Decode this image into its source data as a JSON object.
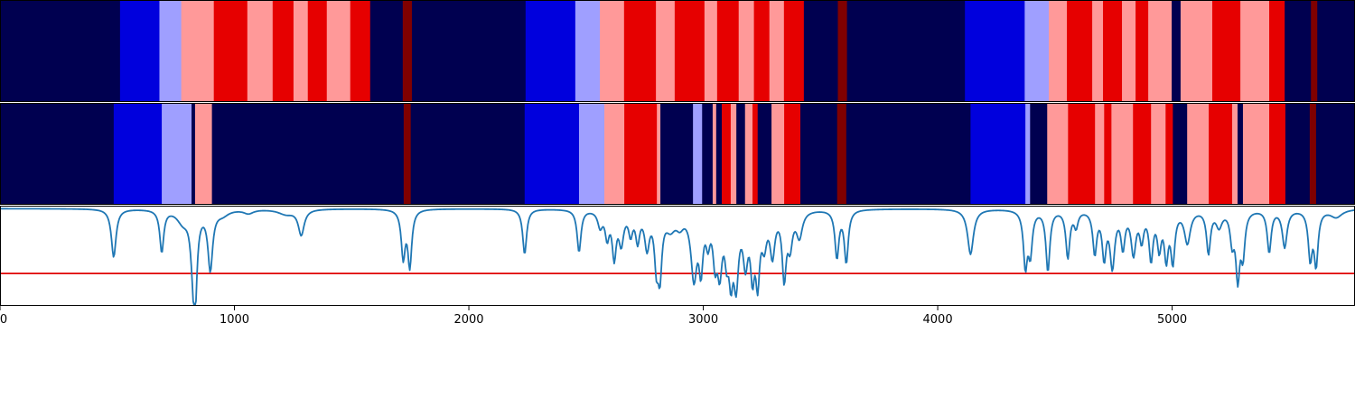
{
  "chart_data": [
    {
      "type": "heatmap",
      "x_range": [
        0,
        5780
      ],
      "colors": {
        "class_0": "#000050",
        "class_1": "#0000dd",
        "class_2": "#9f9fff",
        "class_3": "#ff9999",
        "class_4": "#e60000",
        "class_5": "#800000"
      },
      "segments": [
        [
          0,
          512,
          "class_0"
        ],
        [
          512,
          680,
          "class_1"
        ],
        [
          680,
          773,
          "class_2"
        ],
        [
          773,
          912,
          "class_3"
        ],
        [
          912,
          1055,
          "class_4"
        ],
        [
          1055,
          1163,
          "class_3"
        ],
        [
          1163,
          1252,
          "class_4"
        ],
        [
          1252,
          1313,
          "class_3"
        ],
        [
          1313,
          1394,
          "class_4"
        ],
        [
          1394,
          1494,
          "class_3"
        ],
        [
          1494,
          1579,
          "class_4"
        ],
        [
          1579,
          1718,
          "class_0"
        ],
        [
          1718,
          1757,
          "class_5"
        ],
        [
          1757,
          2242,
          "class_0"
        ],
        [
          2242,
          2454,
          "class_1"
        ],
        [
          2454,
          2559,
          "class_2"
        ],
        [
          2559,
          2662,
          "class_3"
        ],
        [
          2662,
          2798,
          "class_4"
        ],
        [
          2798,
          2878,
          "class_3"
        ],
        [
          2878,
          3005,
          "class_4"
        ],
        [
          3005,
          3059,
          "class_3"
        ],
        [
          3059,
          3151,
          "class_4"
        ],
        [
          3151,
          3216,
          "class_3"
        ],
        [
          3216,
          3282,
          "class_4"
        ],
        [
          3282,
          3344,
          "class_3"
        ],
        [
          3344,
          3429,
          "class_4"
        ],
        [
          3429,
          3574,
          "class_0"
        ],
        [
          3574,
          3613,
          "class_5"
        ],
        [
          3613,
          4116,
          "class_0"
        ],
        [
          4116,
          4371,
          "class_1"
        ],
        [
          4371,
          4474,
          "class_2"
        ],
        [
          4474,
          4551,
          "class_3"
        ],
        [
          4551,
          4659,
          "class_4"
        ],
        [
          4659,
          4705,
          "class_3"
        ],
        [
          4705,
          4786,
          "class_4"
        ],
        [
          4786,
          4844,
          "class_3"
        ],
        [
          4844,
          4898,
          "class_4"
        ],
        [
          4898,
          4998,
          "class_3"
        ],
        [
          4998,
          5036,
          "class_0"
        ],
        [
          5036,
          5171,
          "class_3"
        ],
        [
          5171,
          5291,
          "class_4"
        ],
        [
          5291,
          5414,
          "class_3"
        ],
        [
          5414,
          5480,
          "class_4"
        ],
        [
          5480,
          5592,
          "class_0"
        ],
        [
          5592,
          5619,
          "class_5"
        ],
        [
          5619,
          5780,
          "class_0"
        ]
      ]
    },
    {
      "type": "heatmap",
      "x_range": [
        0,
        5780
      ],
      "colors": {
        "class_0": "#000050",
        "class_1": "#0000dd",
        "class_2": "#9f9fff",
        "class_3": "#ff9999",
        "class_4": "#e60000",
        "class_5": "#800000"
      },
      "segments": [
        [
          0,
          485,
          "class_0"
        ],
        [
          485,
          690,
          "class_1"
        ],
        [
          690,
          817,
          "class_2"
        ],
        [
          817,
          832,
          "class_0"
        ],
        [
          832,
          904,
          "class_3"
        ],
        [
          904,
          1722,
          "class_0"
        ],
        [
          1722,
          1752,
          "class_5"
        ],
        [
          1752,
          2238,
          "class_0"
        ],
        [
          2238,
          2470,
          "class_1"
        ],
        [
          2470,
          2578,
          "class_2"
        ],
        [
          2578,
          2663,
          "class_3"
        ],
        [
          2663,
          2802,
          "class_4"
        ],
        [
          2802,
          2817,
          "class_3"
        ],
        [
          2817,
          2956,
          "class_0"
        ],
        [
          2956,
          2995,
          "class_2"
        ],
        [
          2995,
          3040,
          "class_0"
        ],
        [
          3040,
          3055,
          "class_3"
        ],
        [
          3055,
          3079,
          "class_0"
        ],
        [
          3079,
          3117,
          "class_4"
        ],
        [
          3117,
          3141,
          "class_3"
        ],
        [
          3141,
          3178,
          "class_0"
        ],
        [
          3178,
          3210,
          "class_3"
        ],
        [
          3210,
          3232,
          "class_4"
        ],
        [
          3232,
          3291,
          "class_0"
        ],
        [
          3291,
          3345,
          "class_3"
        ],
        [
          3345,
          3414,
          "class_4"
        ],
        [
          3414,
          3571,
          "class_0"
        ],
        [
          3571,
          3610,
          "class_5"
        ],
        [
          3610,
          4140,
          "class_0"
        ],
        [
          4140,
          4374,
          "class_1"
        ],
        [
          4374,
          4394,
          "class_2"
        ],
        [
          4394,
          4467,
          "class_0"
        ],
        [
          4467,
          4556,
          "class_3"
        ],
        [
          4556,
          4671,
          "class_4"
        ],
        [
          4671,
          4710,
          "class_3"
        ],
        [
          4710,
          4741,
          "class_4"
        ],
        [
          4741,
          4833,
          "class_3"
        ],
        [
          4833,
          4910,
          "class_4"
        ],
        [
          4910,
          4972,
          "class_3"
        ],
        [
          4972,
          5003,
          "class_4"
        ],
        [
          5003,
          5064,
          "class_0"
        ],
        [
          5064,
          5156,
          "class_3"
        ],
        [
          5156,
          5256,
          "class_4"
        ],
        [
          5256,
          5279,
          "class_3"
        ],
        [
          5279,
          5302,
          "class_0"
        ],
        [
          5302,
          5414,
          "class_3"
        ],
        [
          5414,
          5483,
          "class_4"
        ],
        [
          5483,
          5587,
          "class_0"
        ],
        [
          5587,
          5614,
          "class_5"
        ],
        [
          5614,
          5780,
          "class_0"
        ]
      ]
    },
    {
      "type": "line",
      "xlim": [
        0,
        5780
      ],
      "ylim": [
        0,
        1
      ],
      "grid": false,
      "xticks": [
        0,
        1000,
        2000,
        3000,
        4000,
        5000
      ],
      "xtick_labels": [
        "0",
        "1000",
        "2000",
        "3000",
        "4000",
        "5000"
      ],
      "line_color": "#1f77b4",
      "threshold": {
        "value": 0.32,
        "color": "#e00000"
      },
      "series": [
        {
          "baseline": 0.98,
          "dips": [
            [
              485,
              0.49,
              12
            ],
            [
              690,
              0.55,
              10
            ],
            [
              780,
              0.86,
              30
            ],
            [
              820,
              0.78,
              12
            ],
            [
              828,
              0.55,
              10
            ],
            [
              833,
              0.38,
              10
            ],
            [
              897,
              0.38,
              12
            ],
            [
              950,
              0.93,
              30
            ],
            [
              1060,
              0.94,
              25
            ],
            [
              1220,
              0.93,
              40
            ],
            [
              1285,
              0.72,
              15
            ],
            [
              1720,
              0.5,
              10
            ],
            [
              1748,
              0.41,
              10
            ],
            [
              2238,
              0.52,
              10
            ],
            [
              2470,
              0.55,
              10
            ],
            [
              2560,
              0.82,
              12
            ],
            [
              2590,
              0.72,
              10
            ],
            [
              2620,
              0.52,
              10
            ],
            [
              2650,
              0.66,
              12
            ],
            [
              2690,
              0.76,
              10
            ],
            [
              2720,
              0.69,
              10
            ],
            [
              2760,
              0.62,
              12
            ],
            [
              2800,
              0.5,
              10
            ],
            [
              2815,
              0.4,
              10
            ],
            [
              2860,
              0.82,
              25
            ],
            [
              2900,
              0.86,
              20
            ],
            [
              2960,
              0.32,
              15
            ],
            [
              2990,
              0.45,
              10
            ],
            [
              3020,
              0.72,
              10
            ],
            [
              3050,
              0.55,
              10
            ],
            [
              3070,
              0.42,
              12
            ],
            [
              3100,
              0.62,
              10
            ],
            [
              3118,
              0.42,
              10
            ],
            [
              3140,
              0.3,
              12
            ],
            [
              3180,
              0.5,
              12
            ],
            [
              3210,
              0.4,
              10
            ],
            [
              3232,
              0.32,
              10
            ],
            [
              3260,
              0.68,
              12
            ],
            [
              3295,
              0.55,
              12
            ],
            [
              3345,
              0.32,
              10
            ],
            [
              3370,
              0.65,
              12
            ],
            [
              3410,
              0.72,
              15
            ],
            [
              3570,
              0.5,
              10
            ],
            [
              3610,
              0.45,
              10
            ],
            [
              4140,
              0.52,
              15
            ],
            [
              4374,
              0.42,
              10
            ],
            [
              4395,
              0.56,
              10
            ],
            [
              4470,
              0.36,
              10
            ],
            [
              4555,
              0.5,
              10
            ],
            [
              4590,
              0.82,
              10
            ],
            [
              4670,
              0.55,
              10
            ],
            [
              4710,
              0.52,
              10
            ],
            [
              4745,
              0.42,
              12
            ],
            [
              4790,
              0.62,
              10
            ],
            [
              4835,
              0.55,
              12
            ],
            [
              4870,
              0.7,
              10
            ],
            [
              4910,
              0.5,
              10
            ],
            [
              4945,
              0.62,
              10
            ],
            [
              4975,
              0.52,
              10
            ],
            [
              5003,
              0.48,
              10
            ],
            [
              5065,
              0.65,
              15
            ],
            [
              5155,
              0.55,
              10
            ],
            [
              5200,
              0.82,
              15
            ],
            [
              5256,
              0.68,
              10
            ],
            [
              5280,
              0.32,
              10
            ],
            [
              5302,
              0.55,
              10
            ],
            [
              5414,
              0.55,
              10
            ],
            [
              5480,
              0.6,
              12
            ],
            [
              5589,
              0.5,
              10
            ],
            [
              5614,
              0.44,
              10
            ],
            [
              5700,
              0.9,
              30
            ]
          ]
        }
      ]
    }
  ]
}
